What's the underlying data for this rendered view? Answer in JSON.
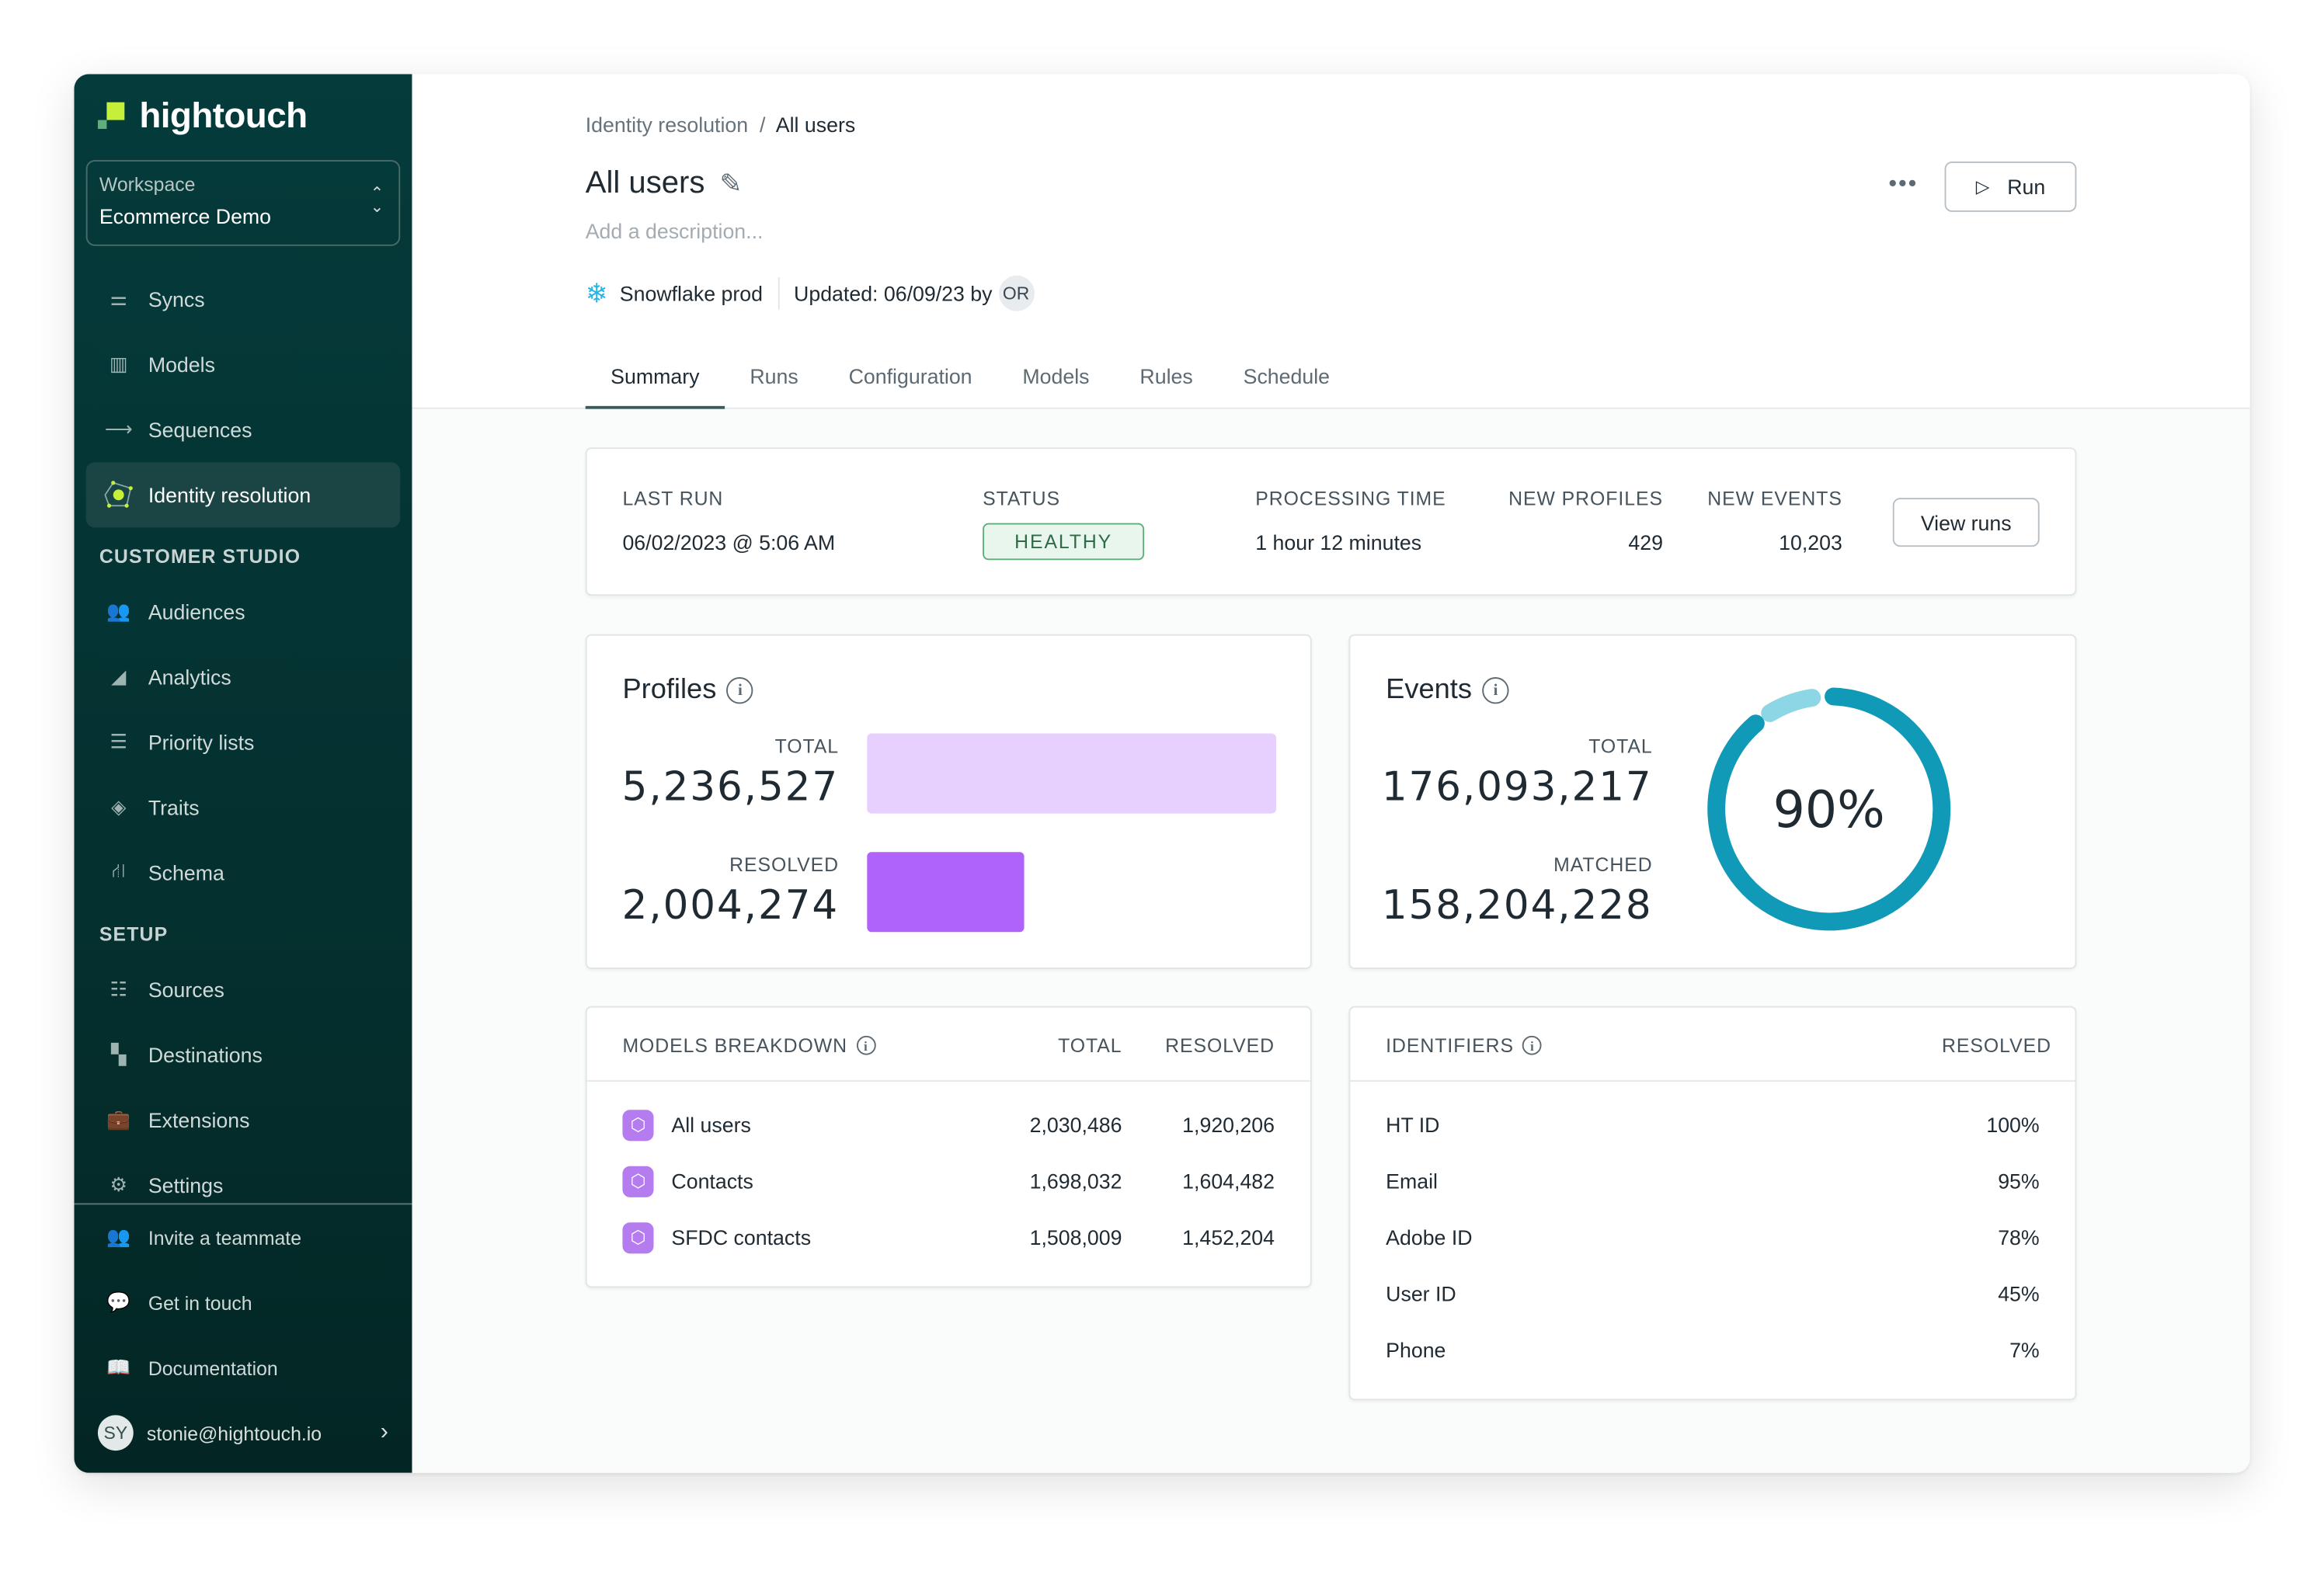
{
  "brand": {
    "name": "hightouch",
    "colors": {
      "sidebar": "#053b3b",
      "accent_lime": "#c6ef3a",
      "teal": "#119ab7",
      "teal_light": "#8dd6e6",
      "purple": "#b063fb",
      "purple_light": "#e7d0fd",
      "healthy": "#5fae7c"
    }
  },
  "workspace": {
    "label": "Workspace",
    "value": "Ecommerce Demo"
  },
  "sidebar": {
    "items": [
      {
        "label": "Syncs",
        "icon": "syncs-icon"
      },
      {
        "label": "Models",
        "icon": "models-icon"
      },
      {
        "label": "Sequences",
        "icon": "sequences-icon"
      },
      {
        "label": "Identity resolution",
        "icon": "identity-resolution-icon",
        "active": true
      }
    ],
    "customer_studio": {
      "title": "CUSTOMER STUDIO",
      "items": [
        {
          "label": "Audiences"
        },
        {
          "label": "Analytics"
        },
        {
          "label": "Priority lists"
        },
        {
          "label": "Traits"
        },
        {
          "label": "Schema"
        }
      ]
    },
    "setup": {
      "title": "SETUP",
      "items": [
        {
          "label": "Sources"
        },
        {
          "label": "Destinations"
        },
        {
          "label": "Extensions"
        },
        {
          "label": "Settings"
        }
      ]
    },
    "footer": [
      {
        "label": "Invite a teammate"
      },
      {
        "label": "Get in touch"
      },
      {
        "label": "Documentation"
      }
    ],
    "user": {
      "initials": "SY",
      "email": "stonie@hightouch.io"
    }
  },
  "breadcrumb": {
    "parent": "Identity resolution",
    "sep": "/",
    "current": "All users"
  },
  "header": {
    "title": "All users",
    "description_placeholder": "Add a description...",
    "source": "Snowflake prod",
    "updated": "Updated: 06/09/23 by",
    "updated_by": "OR",
    "more": "•••",
    "run_label": "Run"
  },
  "tabs": [
    {
      "label": "Summary",
      "active": true
    },
    {
      "label": "Runs"
    },
    {
      "label": "Configuration"
    },
    {
      "label": "Models"
    },
    {
      "label": "Rules"
    },
    {
      "label": "Schedule"
    }
  ],
  "last_run": {
    "last_run_label": "LAST RUN",
    "last_run": "06/02/2023 @ 5:06 AM",
    "status_label": "STATUS",
    "status": "HEALTHY",
    "processing_label": "PROCESSING TIME",
    "processing": "1 hour 12 minutes",
    "new_profiles_label": "NEW PROFILES",
    "new_profiles": "429",
    "new_events_label": "NEW EVENTS",
    "new_events": "10,203",
    "view_runs": "View runs"
  },
  "profiles": {
    "title": "Profiles",
    "total_label": "TOTAL",
    "total": "5,236,527",
    "resolved_label": "RESOLVED",
    "resolved": "2,004,274"
  },
  "events": {
    "title": "Events",
    "total_label": "TOTAL",
    "total": "176,093,217",
    "matched_label": "MATCHED",
    "matched": "158,204,228",
    "percent_label": "90%",
    "percent": 90
  },
  "models_breakdown": {
    "title": "MODELS BREAKDOWN",
    "cols": [
      "TOTAL",
      "RESOLVED"
    ],
    "rows": [
      {
        "name": "All users",
        "total": "2,030,486",
        "resolved": "1,920,206"
      },
      {
        "name": "Contacts",
        "total": "1,698,032",
        "resolved": "1,604,482"
      },
      {
        "name": "SFDC contacts",
        "total": "1,508,009",
        "resolved": "1,452,204"
      }
    ]
  },
  "identifiers": {
    "title": "IDENTIFIERS",
    "col": "RESOLVED",
    "rows": [
      {
        "name": "HT ID",
        "value": "100%"
      },
      {
        "name": "Email",
        "value": "95%"
      },
      {
        "name": "Adobe ID",
        "value": "78%"
      },
      {
        "name": "User ID",
        "value": "45%"
      },
      {
        "name": "Phone",
        "value": "7%"
      }
    ]
  }
}
